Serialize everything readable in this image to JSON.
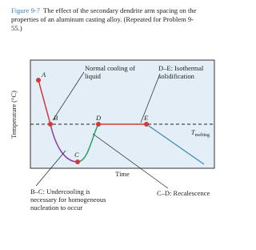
{
  "caption": {
    "label": "Figure 9-7",
    "text": "The effect of the secondary dendrite arm spacing on the properties of an aluminum casting alloy. (Repeated for Problem 9-55.)"
  },
  "axes": {
    "y_label": "Temperature (°C)",
    "x_label": "Time",
    "reference_line": {
      "label": "T",
      "subscript": "melting"
    }
  },
  "points": [
    {
      "label": "A"
    },
    {
      "label": "B"
    },
    {
      "label": "C"
    },
    {
      "label": "D"
    },
    {
      "label": "E"
    }
  ],
  "annotations": [
    {
      "label": "Normal cooling of liquid"
    },
    {
      "label": "D–E: Isothermal solidification"
    },
    {
      "label": "B–C: Undercooling is necessary for homogeneous nucleation to occur"
    },
    {
      "label": "C–D: Recalescence"
    }
  ]
}
